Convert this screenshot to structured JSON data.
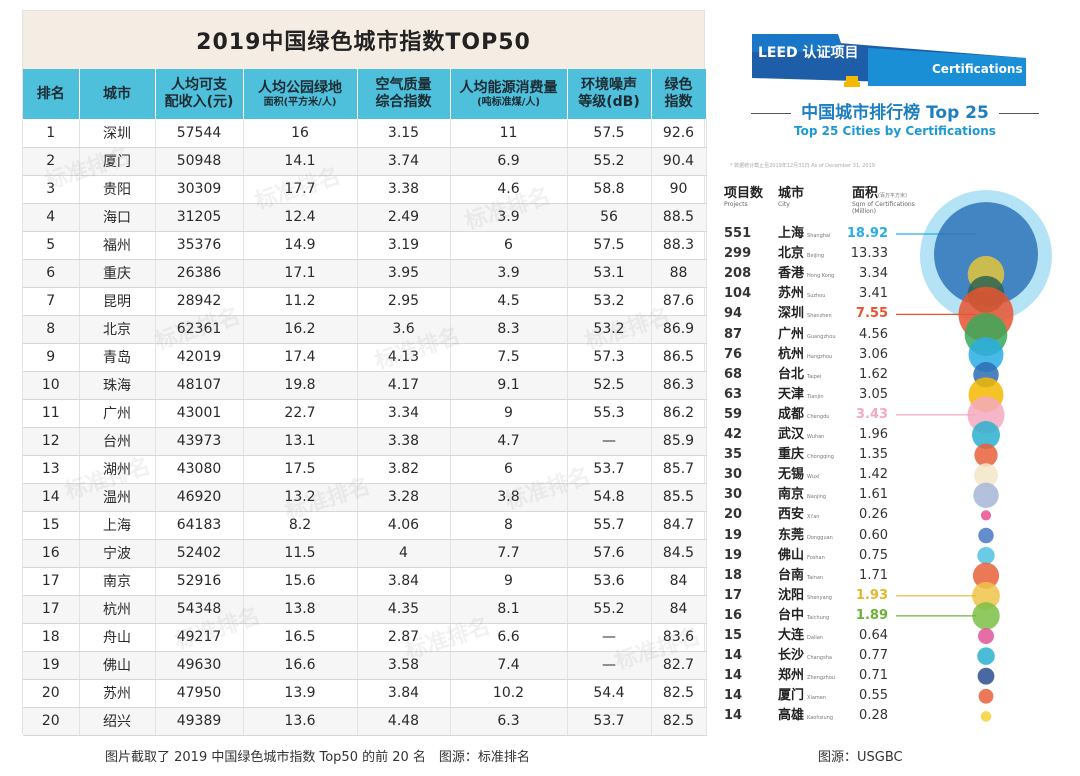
{
  "left_table": {
    "title": "2019中国绿色城市指数TOP50",
    "headers": [
      {
        "main": "排名",
        "sub": ""
      },
      {
        "main": "城市",
        "sub": ""
      },
      {
        "main": "人均可支",
        "main2": "配收入(元)",
        "sub": ""
      },
      {
        "main": "人均公园绿地",
        "sub": "面积(平方米/人)"
      },
      {
        "main": "空气质量",
        "main2": "综合指数",
        "sub": ""
      },
      {
        "main": "人均能源消费量",
        "sub": "(吨标准煤/人)"
      },
      {
        "main": "环境噪声",
        "main2": "等级(dB)",
        "sub": ""
      },
      {
        "main": "绿色",
        "main2": "指数",
        "sub": ""
      }
    ],
    "rows": [
      [
        "1",
        "深圳",
        "57544",
        "16",
        "3.15",
        "11",
        "57.5",
        "92.6"
      ],
      [
        "2",
        "厦门",
        "50948",
        "14.1",
        "3.74",
        "6.9",
        "55.2",
        "90.4"
      ],
      [
        "3",
        "贵阳",
        "30309",
        "17.7",
        "3.38",
        "4.6",
        "58.8",
        "90"
      ],
      [
        "4",
        "海口",
        "31205",
        "12.4",
        "2.49",
        "3.9",
        "56",
        "88.5"
      ],
      [
        "5",
        "福州",
        "35376",
        "14.9",
        "3.19",
        "6",
        "57.5",
        "88.3"
      ],
      [
        "6",
        "重庆",
        "26386",
        "17.1",
        "3.95",
        "3.9",
        "53.1",
        "88"
      ],
      [
        "7",
        "昆明",
        "28942",
        "11.2",
        "2.95",
        "4.5",
        "53.2",
        "87.6"
      ],
      [
        "8",
        "北京",
        "62361",
        "16.2",
        "3.6",
        "8.3",
        "53.2",
        "86.9"
      ],
      [
        "9",
        "青岛",
        "42019",
        "17.4",
        "4.13",
        "7.5",
        "57.3",
        "86.5"
      ],
      [
        "10",
        "珠海",
        "48107",
        "19.8",
        "4.17",
        "9.1",
        "52.5",
        "86.3"
      ],
      [
        "11",
        "广州",
        "43001",
        "22.7",
        "3.34",
        "9",
        "55.3",
        "86.2"
      ],
      [
        "12",
        "台州",
        "43973",
        "13.1",
        "3.38",
        "4.7",
        "—",
        "85.9"
      ],
      [
        "13",
        "湖州",
        "43080",
        "17.5",
        "3.82",
        "6",
        "53.7",
        "85.7"
      ],
      [
        "14",
        "温州",
        "46920",
        "13.2",
        "3.28",
        "3.8",
        "54.8",
        "85.5"
      ],
      [
        "15",
        "上海",
        "64183",
        "8.2",
        "4.06",
        "8",
        "55.7",
        "84.7"
      ],
      [
        "16",
        "宁波",
        "52402",
        "11.5",
        "4",
        "7.7",
        "57.6",
        "84.5"
      ],
      [
        "17",
        "南京",
        "52916",
        "15.6",
        "3.84",
        "9",
        "53.6",
        "84"
      ],
      [
        "17",
        "杭州",
        "54348",
        "13.8",
        "4.35",
        "8.1",
        "55.2",
        "84"
      ],
      [
        "18",
        "舟山",
        "49217",
        "16.5",
        "2.87",
        "6.6",
        "—",
        "83.6"
      ],
      [
        "19",
        "佛山",
        "49630",
        "16.6",
        "3.58",
        "7.4",
        "—",
        "82.7"
      ],
      [
        "20",
        "苏州",
        "47950",
        "13.9",
        "3.84",
        "10.2",
        "54.4",
        "82.5"
      ],
      [
        "20",
        "绍兴",
        "49389",
        "13.6",
        "4.48",
        "6.3",
        "53.7",
        "82.5"
      ]
    ],
    "caption": "图片截取了 2019 中国绿色城市指数 Top50 的前 20 名　图源：标准排名"
  },
  "right_panel": {
    "banner_left": "LEED 认证项目",
    "banner_right": "Certifications",
    "title": "中国城市排行榜 Top 25",
    "subtitle": "Top 25 Cities by Certifications",
    "note": "* 数据统计截止至2019年12月31日 As of December 31, 2019",
    "col_projects": "项目数",
    "col_projects_en": "Projects",
    "col_city": "城市",
    "col_city_en": "City",
    "col_area": "面积",
    "col_area_unit": "(百万平方米)",
    "col_area_en": "Sqm of Certifications (Million)",
    "caption": "图源：USGBC"
  },
  "chart_data": {
    "type": "bubble",
    "title": "中国城市排行榜 Top 25",
    "subtitle": "Top 25 Cities by Certifications",
    "points": [
      {
        "projects": 551,
        "city": "上海",
        "city_en": "Shanghai",
        "area": 18.92,
        "color": "#29aee4",
        "highlight": true
      },
      {
        "projects": 299,
        "city": "北京",
        "city_en": "Beijing",
        "area": 13.33,
        "color": "#2e74b8"
      },
      {
        "projects": 208,
        "city": "香港",
        "city_en": "Hong Kong",
        "area": 3.34,
        "color": "#e2c53a"
      },
      {
        "projects": 104,
        "city": "苏州",
        "city_en": "Suzhou",
        "area": 3.41,
        "color": "#2e6451"
      },
      {
        "projects": 94,
        "city": "深圳",
        "city_en": "Shenzhen",
        "area": 7.55,
        "color": "#e9542f",
        "highlight": true
      },
      {
        "projects": 87,
        "city": "广州",
        "city_en": "Guangzhou",
        "area": 4.56,
        "color": "#3aa95a"
      },
      {
        "projects": 76,
        "city": "杭州",
        "city_en": "Hangzhou",
        "area": 3.06,
        "color": "#29aee4"
      },
      {
        "projects": 68,
        "city": "台北",
        "city_en": "Taipei",
        "area": 1.62,
        "color": "#2e6cb5"
      },
      {
        "projects": 63,
        "city": "天津",
        "city_en": "Tianjin",
        "area": 3.05,
        "color": "#f5b800"
      },
      {
        "projects": 59,
        "city": "成都",
        "city_en": "Chengdu",
        "area": 3.43,
        "color": "#f4a9c0",
        "highlight": true
      },
      {
        "projects": 42,
        "city": "武汉",
        "city_en": "Wuhan",
        "area": 1.96,
        "color": "#2bb0d0"
      },
      {
        "projects": 35,
        "city": "重庆",
        "city_en": "Chongqing",
        "area": 1.35,
        "color": "#e8603a"
      },
      {
        "projects": 30,
        "city": "无锡",
        "city_en": "Wuxi",
        "area": 1.42,
        "color": "#f3e6c8"
      },
      {
        "projects": 30,
        "city": "南京",
        "city_en": "Nanjing",
        "area": 1.61,
        "color": "#a6b6d6"
      },
      {
        "projects": 20,
        "city": "西安",
        "city_en": "Xi'an",
        "area": 0.26,
        "color": "#e9508f"
      },
      {
        "projects": 19,
        "city": "东莞",
        "city_en": "Dongguan",
        "area": 0.6,
        "color": "#4a78c2"
      },
      {
        "projects": 19,
        "city": "佛山",
        "city_en": "Foshan",
        "area": 0.75,
        "color": "#4fc2e0"
      },
      {
        "projects": 18,
        "city": "台南",
        "city_en": "Tainan",
        "area": 1.71,
        "color": "#e8603a"
      },
      {
        "projects": 17,
        "city": "沈阳",
        "city_en": "Shenyang",
        "area": 1.93,
        "color": "#f0c34a",
        "highlight": true
      },
      {
        "projects": 16,
        "city": "台中",
        "city_en": "Taichung",
        "area": 1.89,
        "color": "#7cbf47",
        "highlight": true
      },
      {
        "projects": 15,
        "city": "大连",
        "city_en": "Dalian",
        "area": 0.64,
        "color": "#e0559a"
      },
      {
        "projects": 14,
        "city": "长沙",
        "city_en": "Changsha",
        "area": 0.77,
        "color": "#2bb0d0"
      },
      {
        "projects": 14,
        "city": "郑州",
        "city_en": "Zhengzhou",
        "area": 0.71,
        "color": "#2a4f8f"
      },
      {
        "projects": 14,
        "city": "厦门",
        "city_en": "Xiamen",
        "area": 0.55,
        "color": "#e8603a"
      },
      {
        "projects": 14,
        "city": "高雄",
        "city_en": "Kaohsiung",
        "area": 0.28,
        "color": "#f5d33a"
      }
    ],
    "highlight_colors": {
      "上海": "#29aee4",
      "深圳": "#e9542f",
      "成都": "#f4a9c0",
      "沈阳": "#e3b62a",
      "台中": "#6cb23a"
    }
  },
  "watermark": "标准排名"
}
